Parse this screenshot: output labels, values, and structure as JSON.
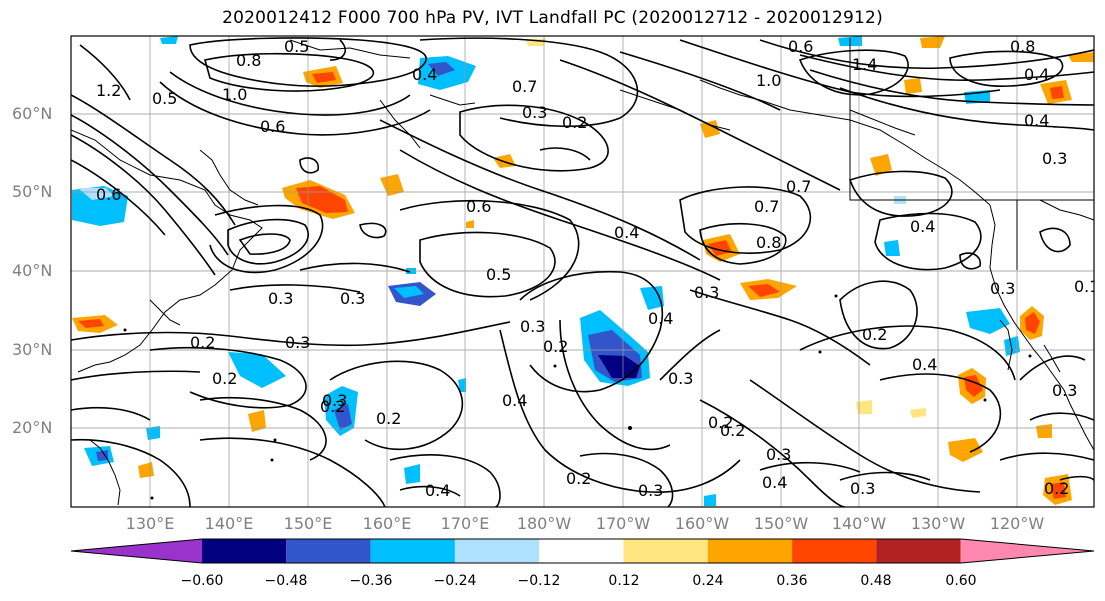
{
  "title": "2020012412 F000 700 hPa PV, IVT Landfall PC (2020012712 - 2020012912)",
  "lat_labels": [
    "60°N",
    "50°N",
    "40°N",
    "30°N",
    "20°N"
  ],
  "lon_labels": [
    "130°E",
    "140°E",
    "150°E",
    "160°E",
    "170°E",
    "180°W",
    "170°W",
    "160°W",
    "150°W",
    "140°W",
    "130°W",
    "120°W"
  ],
  "colorbar": {
    "colors": [
      "#9933cc",
      "#000080",
      "#3355cc",
      "#00bfff",
      "#b0e0ff",
      "#ffffff",
      "#ffe680",
      "#ffa500",
      "#ff4500",
      "#b22222",
      "#ff88b0"
    ],
    "tick_labels": [
      "−0.60",
      "−0.48",
      "−0.36",
      "−0.24",
      "−0.12",
      "0.12",
      "0.24",
      "0.36",
      "0.48",
      "0.60"
    ]
  },
  "contour_labels": [
    "0.5",
    "0.8",
    "1.0",
    "0.6",
    "0.4",
    "0.3",
    "0.2",
    "0.7",
    "1.4",
    "0.8",
    "0.6",
    "0.4",
    "1.0",
    "0.7",
    "0.4",
    "0.7",
    "0.6",
    "0.8",
    "0.3",
    "0.4",
    "0.3",
    "0.2",
    "0.3",
    "0.2",
    "0.5",
    "0.4",
    "0.3",
    "0.3",
    "0.2",
    "0.2",
    "0.4",
    "0.2",
    "0.3",
    "0.2",
    "0.4",
    "0.2",
    "0.2",
    "0.3",
    "0.3",
    "0.3",
    "0.4",
    "0.2",
    "0.3",
    "0.4",
    "0.3",
    "0.3",
    "0.1",
    "0.4",
    "0.3",
    "0.2",
    "1.2",
    "0.5",
    "0.6"
  ],
  "colors": {
    "land_outline": "#000000",
    "grid": "#999999",
    "axis_label": "#808080"
  }
}
